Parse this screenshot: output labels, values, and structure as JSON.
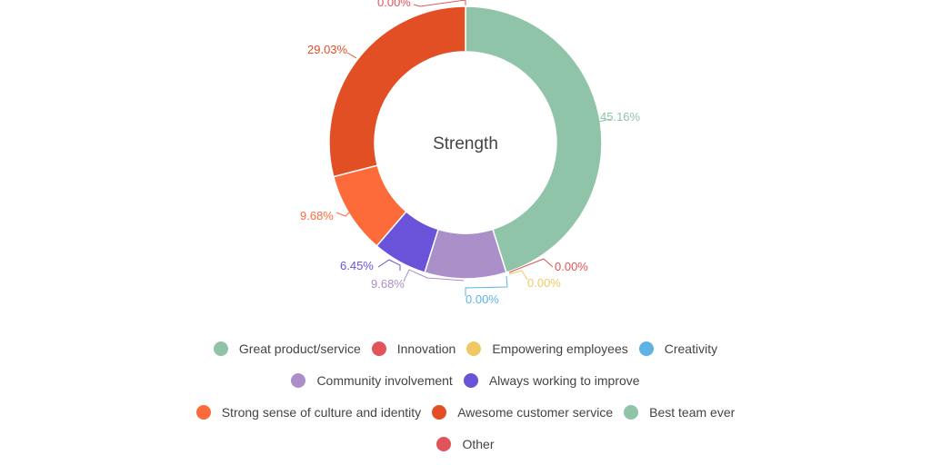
{
  "chart_data": {
    "type": "pie",
    "variant": "donut",
    "title": "Strength",
    "legend_position": "bottom",
    "segments": [
      {
        "name": "Great product/service",
        "value": 45.16,
        "label": "45.16%",
        "color": "#8fc4a8"
      },
      {
        "name": "Innovation",
        "value": 0.0,
        "label": "0.00%",
        "color": "#e0545a"
      },
      {
        "name": "Empowering employees",
        "value": 0.0,
        "label": "0.00%",
        "color": "#f0c965"
      },
      {
        "name": "Creativity",
        "value": 0.0,
        "label": "0.00%",
        "color": "#5cb3e4"
      },
      {
        "name": "Community involvement",
        "value": 9.68,
        "label": "9.68%",
        "color": "#ab8fc8"
      },
      {
        "name": "Always working to improve",
        "value": 6.45,
        "label": "6.45%",
        "color": "#6a52d9"
      },
      {
        "name": "Strong sense of culture and identity",
        "value": 9.68,
        "label": "9.68%",
        "color": "#fe6b3a"
      },
      {
        "name": "Awesome customer service",
        "value": 29.03,
        "label": "29.03%",
        "color": "#e34f25"
      },
      {
        "name": "Best team ever",
        "value": 0.0,
        "label": "",
        "color": "#8fc4a8"
      },
      {
        "name": "Other",
        "value": 0.0,
        "label": "0.00%",
        "color": "#e0545a"
      }
    ]
  },
  "legend": {
    "rows": [
      [
        {
          "label": "Great product/service",
          "color": "#8fc4a8"
        },
        {
          "label": "Innovation",
          "color": "#e0545a"
        },
        {
          "label": "Empowering employees",
          "color": "#f0c965"
        },
        {
          "label": "Creativity",
          "color": "#5cb3e4"
        }
      ],
      [
        {
          "label": "Community involvement",
          "color": "#ab8fc8"
        },
        {
          "label": "Always working to improve",
          "color": "#6a52d9"
        }
      ],
      [
        {
          "label": "Strong sense of culture and identity",
          "color": "#fe6b3a"
        },
        {
          "label": "Awesome customer service",
          "color": "#e34f25"
        },
        {
          "label": "Best team ever",
          "color": "#8fc4a8"
        }
      ],
      [
        {
          "label": "Other",
          "color": "#e0545a"
        }
      ]
    ]
  },
  "labels": {
    "great": {
      "text": "45.16%",
      "color": "#8fc4a8"
    },
    "innovation": {
      "text": "0.00%",
      "color": "#e0545a"
    },
    "empowering": {
      "text": "0.00%",
      "color": "#f0c965"
    },
    "creativity": {
      "text": "0.00%",
      "color": "#5cb3e4"
    },
    "community": {
      "text": "9.68%",
      "color": "#ab8fc8"
    },
    "always": {
      "text": "6.45%",
      "color": "#6a52d9"
    },
    "culture": {
      "text": "9.68%",
      "color": "#fe6b3a"
    },
    "awesome": {
      "text": "29.03%",
      "color": "#e34f25"
    },
    "other": {
      "text": "0.00%",
      "color": "#e0545a"
    }
  }
}
